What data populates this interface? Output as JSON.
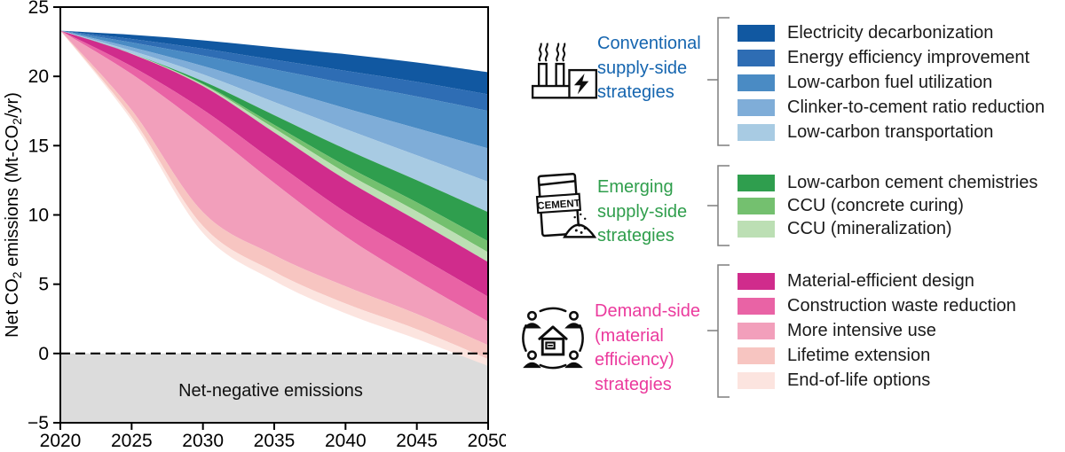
{
  "chart": {
    "y_axis": {
      "label_parts": [
        {
          "t": "Net CO"
        },
        {
          "t": "2",
          "sub": true
        },
        {
          "t": " emissions (Mt-CO"
        },
        {
          "t": "2",
          "sub": true
        },
        {
          "t": "/yr)"
        }
      ],
      "ticks": [
        25,
        20,
        15,
        10,
        5,
        0,
        -5
      ],
      "range": [
        -5,
        25
      ]
    },
    "x_axis": {
      "ticks": [
        2020,
        2025,
        2030,
        2035,
        2040,
        2045,
        2050
      ],
      "range": [
        2020,
        2050
      ]
    },
    "zero_line": {
      "value": 0,
      "style": "dashed",
      "color": "#000000"
    },
    "net_negative": {
      "label": "Net-negative emissions",
      "fill": "#dcdcdc"
    }
  },
  "chart_data": {
    "type": "area",
    "stacked": true,
    "description": "Reduction wedges stacked downward from a declining baseline; bottom boundary is net CO2 emissions, crossing zero around 2046.",
    "x": [
      2020,
      2025,
      2030,
      2035,
      2040,
      2045,
      2050
    ],
    "baseline_total_emissions": [
      23.3,
      23.0,
      22.6,
      22.1,
      21.6,
      21.0,
      20.3
    ],
    "net_emissions": [
      23.3,
      16.8,
      8.7,
      5.25,
      2.9,
      1.05,
      -0.9
    ],
    "ylabel": "Net CO2 emissions (Mt-CO2/yr)",
    "ylim": [
      -5,
      25
    ],
    "xlim": [
      2020,
      2050
    ],
    "grid": false,
    "legend_position": "right",
    "series": [
      {
        "name": "Electricity decarbonization",
        "group": "conventional",
        "color": "#1158A1",
        "values": [
          0,
          0.3,
          0.6,
          0.9,
          1.2,
          1.4,
          1.6
        ]
      },
      {
        "name": "Energy efficiency improvement",
        "group": "conventional",
        "color": "#2E6DB4",
        "values": [
          0,
          0.25,
          0.5,
          0.7,
          0.9,
          1.05,
          1.2
        ]
      },
      {
        "name": "Low-carbon fuel utilization",
        "group": "conventional",
        "color": "#4A8BC4",
        "values": [
          0,
          0.35,
          0.75,
          1.3,
          1.8,
          2.3,
          2.7
        ]
      },
      {
        "name": "Clinker-to-cement ratio reduction",
        "group": "conventional",
        "color": "#7FADD8",
        "values": [
          0,
          0.25,
          0.6,
          1.05,
          1.5,
          1.95,
          2.4
        ]
      },
      {
        "name": "Low-carbon transportation",
        "group": "conventional",
        "color": "#A8CBE3",
        "values": [
          0,
          0.2,
          0.5,
          0.95,
          1.45,
          1.8,
          2.2
        ]
      },
      {
        "name": "Low-carbon cement chemistries",
        "group": "emerging",
        "color": "#2F9E4E",
        "values": [
          0,
          0.0,
          0.2,
          0.7,
          1.2,
          1.6,
          2.1
        ]
      },
      {
        "name": "CCU (concrete curing)",
        "group": "emerging",
        "color": "#74C06F",
        "values": [
          0,
          0.0,
          0.05,
          0.25,
          0.5,
          0.65,
          0.8
        ]
      },
      {
        "name": "CCU (mineralization)",
        "group": "emerging",
        "color": "#BCDFB4",
        "values": [
          0,
          0.03,
          0.1,
          0.3,
          0.5,
          0.65,
          0.7
        ]
      },
      {
        "name": "Material-efficient design",
        "group": "demand",
        "color": "#D02C8C",
        "values": [
          0,
          0.9,
          1.7,
          2.1,
          2.35,
          2.5,
          2.5
        ]
      },
      {
        "name": "Construction waste reduction",
        "group": "demand",
        "color": "#E963A5",
        "values": [
          0,
          0.55,
          1.2,
          1.55,
          1.75,
          1.85,
          1.8
        ]
      },
      {
        "name": "More intensive use",
        "group": "demand",
        "color": "#F29FBB",
        "values": [
          0,
          2.6,
          6.2,
          5.2,
          3.6,
          2.4,
          1.7
        ]
      },
      {
        "name": "Lifetime extension",
        "group": "demand",
        "color": "#F7C5C1",
        "values": [
          0,
          0.5,
          1.0,
          1.2,
          1.25,
          1.1,
          1.0
        ]
      },
      {
        "name": "End-of-life options",
        "group": "demand",
        "color": "#FCE4DF",
        "values": [
          0,
          0.25,
          0.5,
          0.65,
          0.7,
          0.7,
          0.5
        ]
      }
    ]
  },
  "legend": {
    "groups": [
      {
        "id": "conventional",
        "icon": "factory-icon",
        "label_lines": [
          "Conventional",
          "supply-side",
          "strategies"
        ],
        "label_color": "#1565AF",
        "series_indexes": [
          0,
          1,
          2,
          3,
          4
        ]
      },
      {
        "id": "emerging",
        "icon": "cement-bag-icon",
        "label_lines": [
          "Emerging",
          "supply-side",
          "strategies"
        ],
        "label_color": "#2F9E4C",
        "series_indexes": [
          5,
          6,
          7
        ]
      },
      {
        "id": "demand",
        "icon": "community-icon",
        "label_lines": [
          "Demand-side",
          "(material",
          "efficiency)",
          "strategies"
        ],
        "label_color": "#EB3A9D",
        "series_indexes": [
          8,
          9,
          10,
          11,
          12
        ]
      }
    ],
    "icon_text": {
      "cement_bag_label": "CEMENT"
    },
    "bracket_color": "#7f7f7f"
  }
}
